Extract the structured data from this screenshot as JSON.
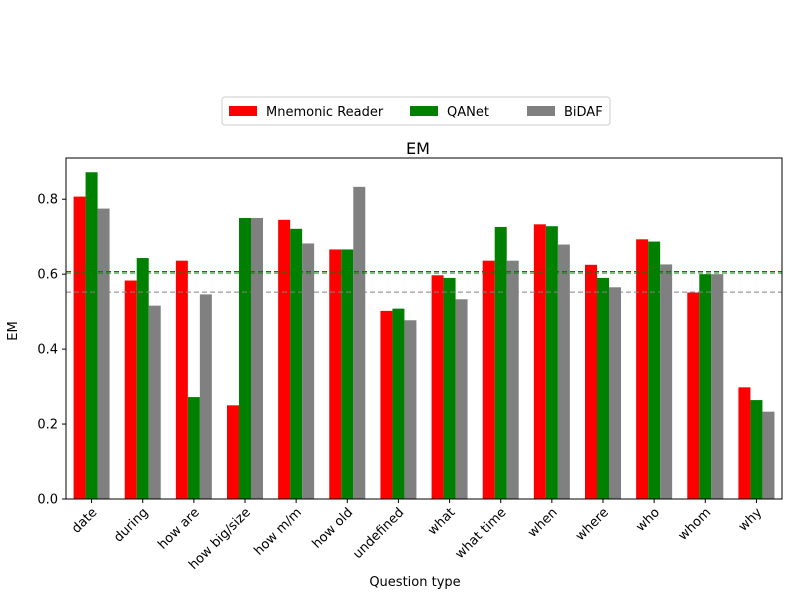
{
  "chart_data": {
    "type": "bar",
    "title": "EM",
    "xlabel": "Question type",
    "ylabel": "EM",
    "ylim": [
      0,
      0.91
    ],
    "yticks": [
      "0.0",
      "0.2",
      "0.4",
      "0.6",
      "0.8"
    ],
    "ytick_values": [
      0.0,
      0.2,
      0.4,
      0.6,
      0.8
    ],
    "categories": [
      "date",
      "during",
      "how are",
      "how big/size",
      "how m/m",
      "how old",
      "undefined",
      "what",
      "what time",
      "when",
      "where",
      "who",
      "whom",
      "why"
    ],
    "series": [
      {
        "name": "Mnemonic Reader",
        "color": "#ff0000",
        "values": [
          0.807,
          0.583,
          0.636,
          0.25,
          0.745,
          0.666,
          0.502,
          0.597,
          0.636,
          0.733,
          0.625,
          0.693,
          0.551,
          0.298
        ]
      },
      {
        "name": "QANet",
        "color": "#008000",
        "values": [
          0.872,
          0.643,
          0.272,
          0.75,
          0.721,
          0.666,
          0.508,
          0.59,
          0.726,
          0.728,
          0.59,
          0.687,
          0.6,
          0.264
        ]
      },
      {
        "name": "BiDAF",
        "color": "#808080",
        "values": [
          0.775,
          0.516,
          0.546,
          0.75,
          0.682,
          0.833,
          0.477,
          0.533,
          0.636,
          0.679,
          0.565,
          0.626,
          0.6,
          0.233
        ]
      }
    ],
    "reference_lines": [
      {
        "value": 0.607,
        "color": "#ff0000"
      },
      {
        "value": 0.603,
        "color": "#008000"
      },
      {
        "value": 0.552,
        "color": "#808080"
      }
    ],
    "legend_position": "top-center",
    "grid": false
  }
}
